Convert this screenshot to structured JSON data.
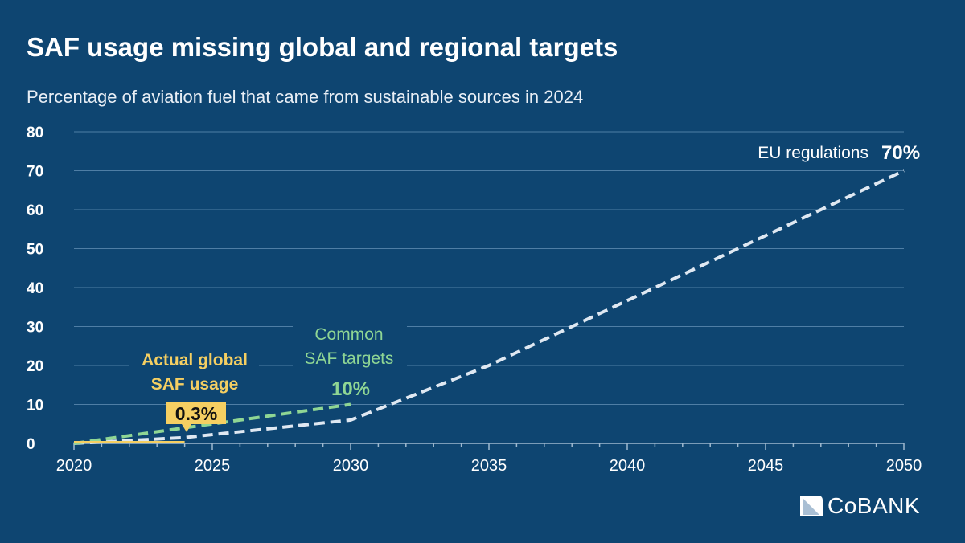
{
  "title": "SAF usage missing global and regional targets",
  "subtitle": "Percentage of aviation fuel that came from sustainable sources in 2024",
  "logo": "CoBANK",
  "chart_data": {
    "type": "line",
    "xlim": [
      2020,
      2050
    ],
    "ylim": [
      0,
      80
    ],
    "x_ticks": [
      2020,
      2025,
      2030,
      2035,
      2040,
      2045,
      2050
    ],
    "y_ticks": [
      0,
      10,
      20,
      30,
      40,
      50,
      60,
      70,
      80
    ],
    "grid": true,
    "colors": {
      "background": "#0e4571",
      "eu": "#dfe8f2",
      "common": "#8fd694",
      "actual": "#f5cf62"
    },
    "series": [
      {
        "key": "eu",
        "name": "EU regulations",
        "style": "dashed",
        "x": [
          2020,
          2024,
          2030,
          2035,
          2050
        ],
        "y": [
          0,
          1.5,
          6,
          20,
          70
        ],
        "label_value": "70%"
      },
      {
        "key": "common",
        "name": "Common SAF targets",
        "style": "dashed",
        "x": [
          2020,
          2030
        ],
        "y": [
          0,
          10
        ],
        "label_value": "10%"
      },
      {
        "key": "actual",
        "name": "Actual global SAF usage",
        "style": "solid",
        "x": [
          2020,
          2024
        ],
        "y": [
          0.3,
          0.3
        ],
        "label_value": "0.3%"
      }
    ]
  }
}
